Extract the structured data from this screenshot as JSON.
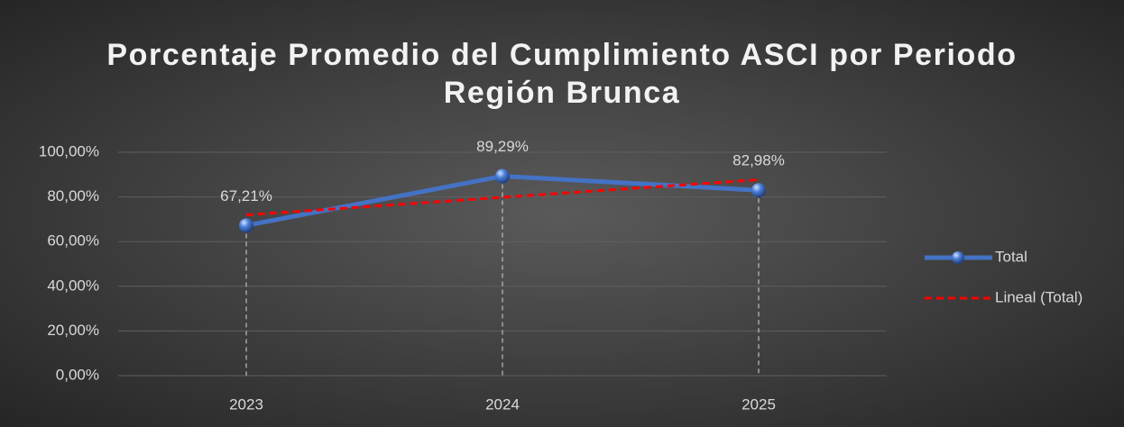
{
  "chart_data": {
    "type": "line",
    "title": "Porcentaje Promedio del Cumplimiento ASCI por Periodo Región Brunca",
    "categories": [
      "2023",
      "2024",
      "2025"
    ],
    "series": [
      {
        "name": "Total",
        "color": "#4472c4",
        "values": [
          67.21,
          89.29,
          82.98
        ],
        "value_labels": [
          "67,21%",
          "89,29%",
          "82,98%"
        ],
        "markers": true,
        "drop_lines": true
      },
      {
        "name": "Lineal (Total)",
        "color": "#ff0000",
        "values": [
          71.94,
          79.83,
          87.71
        ],
        "dashed": true
      }
    ],
    "ylim": [
      0,
      100
    ],
    "yticks": [
      {
        "value": 0,
        "label": "0,00%"
      },
      {
        "value": 20,
        "label": "20,00%"
      },
      {
        "value": 40,
        "label": "40,00%"
      },
      {
        "value": 60,
        "label": "60,00%"
      },
      {
        "value": 80,
        "label": "80,00%"
      },
      {
        "value": 100,
        "label": "100,00%"
      }
    ],
    "grid": true,
    "legend": "right"
  }
}
